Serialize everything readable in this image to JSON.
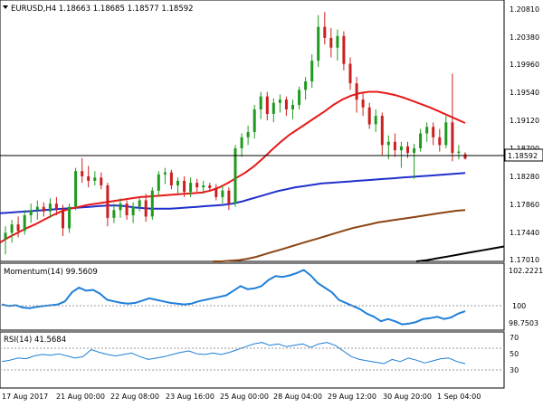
{
  "header": {
    "title": "EURUSD,H4  1.18663 1.18685 1.18577 1.18592",
    "dropdown_icon": "triangle-down-icon"
  },
  "price_axis": {
    "ticks": [
      "1.20810",
      "1.20380",
      "1.19960",
      "1.19540",
      "1.19120",
      "1.18700",
      "1.18280",
      "1.17860",
      "1.17440",
      "1.17010"
    ],
    "current_label": "1.18592"
  },
  "momentum": {
    "label": "Momentum(14) 99.5609",
    "ticks": [
      "102.2221",
      "100",
      "98.7503"
    ]
  },
  "rsi": {
    "label": "RSI(14) 41.5684",
    "ticks": [
      "70",
      "50",
      "30"
    ]
  },
  "time_axis": [
    "17 Aug 2017",
    "21 Aug 00:00",
    "22 Aug 08:00",
    "23 Aug 16:00",
    "25 Aug 00:00",
    "28 Aug 04:00",
    "29 Aug 12:00",
    "30 Aug 20:00",
    "1 Sep 04:00"
  ],
  "colors": {
    "bull": "#1f9a1f",
    "bear": "#cc1f1f",
    "ma20": "#e81919",
    "ma100": "#1f2fcc",
    "ma200": "#8b4513",
    "ma_long": "#000000",
    "oscillator": "#1e7fd8"
  },
  "chart_data": {
    "type": "candlestick",
    "symbol": "EURUSD",
    "timeframe": "H4",
    "ylim": [
      1.1701,
      1.2095
    ],
    "current_price": 1.18592,
    "ohlc": [
      [
        1.1735,
        1.1755,
        1.1712,
        1.1745
      ],
      [
        1.1745,
        1.1765,
        1.173,
        1.1758
      ],
      [
        1.1758,
        1.177,
        1.1738,
        1.1748
      ],
      [
        1.1748,
        1.178,
        1.1742,
        1.1772
      ],
      [
        1.1772,
        1.179,
        1.176,
        1.178
      ],
      [
        1.178,
        1.1795,
        1.1765,
        1.1785
      ],
      [
        1.1785,
        1.1792,
        1.177,
        1.1778
      ],
      [
        1.1778,
        1.1798,
        1.1768,
        1.179
      ],
      [
        1.179,
        1.18,
        1.1772,
        1.1782
      ],
      [
        1.1782,
        1.1788,
        1.174,
        1.1752
      ],
      [
        1.1752,
        1.179,
        1.1745,
        1.1785
      ],
      [
        1.1785,
        1.1845,
        1.178,
        1.184
      ],
      [
        1.184,
        1.186,
        1.1822,
        1.1832
      ],
      [
        1.1832,
        1.1848,
        1.1815,
        1.1825
      ],
      [
        1.1825,
        1.184,
        1.1818,
        1.183
      ],
      [
        1.183,
        1.1838,
        1.1812,
        1.1818
      ],
      [
        1.1818,
        1.1822,
        1.1755,
        1.1768
      ],
      [
        1.1768,
        1.179,
        1.176,
        1.178
      ],
      [
        1.178,
        1.1798,
        1.1768,
        1.179
      ],
      [
        1.179,
        1.1795,
        1.1765,
        1.1772
      ],
      [
        1.1772,
        1.1792,
        1.176,
        1.1785
      ],
      [
        1.1785,
        1.18,
        1.1778,
        1.1795
      ],
      [
        1.1795,
        1.1805,
        1.1762,
        1.177
      ],
      [
        1.177,
        1.1815,
        1.1765,
        1.181
      ],
      [
        1.181,
        1.184,
        1.1802,
        1.1835
      ],
      [
        1.1835,
        1.1845,
        1.182,
        1.1838
      ],
      [
        1.1838,
        1.1842,
        1.1812,
        1.1818
      ],
      [
        1.1818,
        1.183,
        1.1805,
        1.1825
      ],
      [
        1.1825,
        1.1832,
        1.18,
        1.1808
      ],
      [
        1.1808,
        1.183,
        1.18,
        1.1822
      ],
      [
        1.1822,
        1.1828,
        1.1808,
        1.1815
      ],
      [
        1.1815,
        1.1825,
        1.1805,
        1.1818
      ],
      [
        1.1818,
        1.1822,
        1.181,
        1.1814
      ],
      [
        1.1814,
        1.182,
        1.1795,
        1.18
      ],
      [
        1.18,
        1.1818,
        1.179,
        1.181
      ],
      [
        1.181,
        1.1815,
        1.178,
        1.179
      ],
      [
        1.179,
        1.188,
        1.1785,
        1.1875
      ],
      [
        1.1875,
        1.1898,
        1.1862,
        1.1892
      ],
      [
        1.1892,
        1.191,
        1.188,
        1.19
      ],
      [
        1.19,
        1.1942,
        1.189,
        1.1935
      ],
      [
        1.1935,
        1.1962,
        1.192,
        1.1955
      ],
      [
        1.1955,
        1.1962,
        1.1918,
        1.1928
      ],
      [
        1.1928,
        1.1952,
        1.1915,
        1.1945
      ],
      [
        1.1945,
        1.1958,
        1.193,
        1.195
      ],
      [
        1.195,
        1.1955,
        1.1925,
        1.1935
      ],
      [
        1.1935,
        1.195,
        1.192,
        1.1942
      ],
      [
        1.1942,
        1.197,
        1.1935,
        1.1965
      ],
      [
        1.1965,
        1.1985,
        1.195,
        1.1978
      ],
      [
        1.1978,
        1.202,
        1.1968,
        1.201
      ],
      [
        1.201,
        1.208,
        1.2,
        1.2062
      ],
      [
        1.2062,
        1.2085,
        1.2035,
        1.2045
      ],
      [
        1.2045,
        1.206,
        1.2015,
        1.203
      ],
      [
        1.203,
        1.2058,
        1.201,
        1.2048
      ],
      [
        1.2048,
        1.2055,
        1.1995,
        1.2005
      ],
      [
        1.2005,
        1.2015,
        1.1965,
        1.1975
      ],
      [
        1.1975,
        1.1985,
        1.193,
        1.195
      ],
      [
        1.195,
        1.1962,
        1.1925,
        1.1938
      ],
      [
        1.1938,
        1.1945,
        1.1905,
        1.1912
      ],
      [
        1.1912,
        1.1935,
        1.19,
        1.1925
      ],
      [
        1.1925,
        1.193,
        1.1865,
        1.188
      ],
      [
        1.188,
        1.1895,
        1.1858,
        1.1885
      ],
      [
        1.1885,
        1.1898,
        1.1862,
        1.1872
      ],
      [
        1.1872,
        1.1885,
        1.1845,
        1.1878
      ],
      [
        1.1878,
        1.1885,
        1.186,
        1.1868
      ],
      [
        1.1868,
        1.1882,
        1.1828,
        1.1875
      ],
      [
        1.1875,
        1.1905,
        1.187,
        1.1898
      ],
      [
        1.1898,
        1.1915,
        1.1885,
        1.1908
      ],
      [
        1.1908,
        1.1915,
        1.188,
        1.1892
      ],
      [
        1.1892,
        1.1905,
        1.187,
        1.188
      ],
      [
        1.188,
        1.1925,
        1.1875,
        1.1915
      ],
      [
        1.1915,
        1.199,
        1.1855,
        1.1868
      ],
      [
        1.1868,
        1.188,
        1.1858,
        1.187
      ],
      [
        1.1866,
        1.1869,
        1.1858,
        1.1859
      ]
    ],
    "ma20": [
      1.173,
      1.1738,
      1.1745,
      1.1752,
      1.1758,
      1.1765,
      1.1772,
      1.1778,
      1.1782,
      1.1785,
      1.1788,
      1.179,
      1.1792,
      1.1794,
      1.1796,
      1.1798,
      1.18,
      1.1801,
      1.1802,
      1.1803,
      1.1804,
      1.1805,
      1.1806,
      1.1807,
      1.181,
      1.1815,
      1.1822,
      1.183,
      1.1838,
      1.1848,
      1.186,
      1.1873,
      1.1885,
      1.1896,
      1.1905,
      1.1914,
      1.1923,
      1.1932,
      1.1942,
      1.195,
      1.1956,
      1.196,
      1.1962,
      1.1962,
      1.196,
      1.1957,
      1.1953,
      1.1948,
      1.1943,
      1.1938,
      1.1932,
      1.1926,
      1.192,
      1.1914
    ],
    "ma100": [
      1.1775,
      1.1776,
      1.1777,
      1.1778,
      1.1779,
      1.178,
      1.1781,
      1.1782,
      1.1783,
      1.1784,
      1.1785,
      1.1786,
      1.1787,
      1.1787,
      1.1786,
      1.1784,
      1.1783,
      1.1782,
      1.1782,
      1.1782,
      1.1783,
      1.1784,
      1.1785,
      1.1786,
      1.1787,
      1.1788,
      1.179,
      1.1793,
      1.1797,
      1.1801,
      1.1805,
      1.1809,
      1.1812,
      1.1815,
      1.1817,
      1.1819,
      1.1821,
      1.1822,
      1.1823,
      1.1824,
      1.1825,
      1.1826,
      1.1827,
      1.1828,
      1.1829,
      1.183,
      1.1831,
      1.1832,
      1.1833,
      1.1834,
      1.1835,
      1.1836,
      1.1837
    ],
    "ma200": [
      1.1701,
      1.1701,
      1.1702,
      1.1703,
      1.1705,
      1.1708,
      1.1712,
      1.1716,
      1.172,
      1.1724,
      1.1728,
      1.1732,
      1.1736,
      1.174,
      1.1744,
      1.1748,
      1.1752,
      1.1755,
      1.1758,
      1.1761,
      1.1763,
      1.1765,
      1.1767,
      1.1769,
      1.1771,
      1.1773,
      1.1775,
      1.1777,
      1.1779,
      1.178
    ],
    "ma_long": [
      1.1701,
      1.1703,
      1.1706,
      1.1709,
      1.1712,
      1.1715,
      1.1718,
      1.1721,
      1.1724
    ],
    "momentum_values": [
      100.0,
      99.9,
      99.95,
      99.8,
      99.75,
      99.85,
      99.9,
      99.95,
      100.0,
      100.2,
      100.8,
      101.1,
      100.9,
      100.95,
      100.7,
      100.3,
      100.2,
      100.1,
      100.05,
      100.1,
      100.25,
      100.4,
      100.3,
      100.2,
      100.1,
      100.05,
      100.0,
      100.05,
      100.2,
      100.3,
      100.4,
      100.5,
      100.6,
      100.9,
      101.2,
      101.0,
      101.05,
      101.2,
      101.6,
      101.85,
      101.8,
      101.9,
      102.05,
      102.25,
      101.9,
      101.4,
      101.1,
      100.8,
      100.3,
      100.1,
      99.9,
      99.7,
      99.4,
      99.2,
      98.9,
      99.05,
      98.9,
      98.7,
      98.75,
      98.85,
      99.05,
      99.1,
      99.2,
      99.05,
      99.15,
      99.4,
      99.56
    ],
    "rsi_values": [
      45,
      47,
      50,
      49,
      53,
      55,
      54,
      56,
      53,
      50,
      52,
      62,
      58,
      55,
      53,
      55,
      57,
      52,
      48,
      50,
      52,
      55,
      58,
      60,
      56,
      55,
      57,
      55,
      58,
      62,
      66,
      70,
      72,
      68,
      70,
      66,
      68,
      70,
      65,
      70,
      72,
      68,
      60,
      52,
      48,
      46,
      44,
      42,
      48,
      45,
      50,
      47,
      43,
      46,
      49,
      50,
      45,
      42
    ]
  }
}
